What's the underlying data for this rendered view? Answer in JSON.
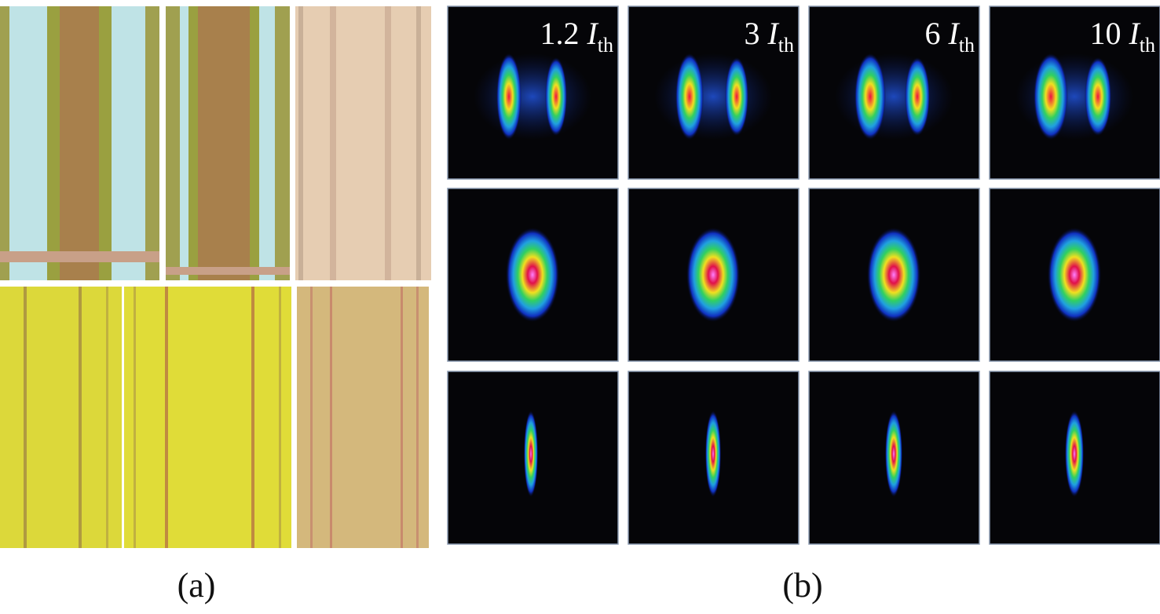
{
  "panels": {
    "a": {
      "label": "(a)"
    },
    "b": {
      "label": "(b)",
      "columns": [
        {
          "number": "1.2",
          "symbol": "I",
          "subscript": "th"
        },
        {
          "number": "3",
          "symbol": "I",
          "subscript": "th"
        },
        {
          "number": "6",
          "symbol": "I",
          "subscript": "th"
        },
        {
          "number": "10",
          "symbol": "I",
          "subscript": "th"
        }
      ]
    }
  }
}
